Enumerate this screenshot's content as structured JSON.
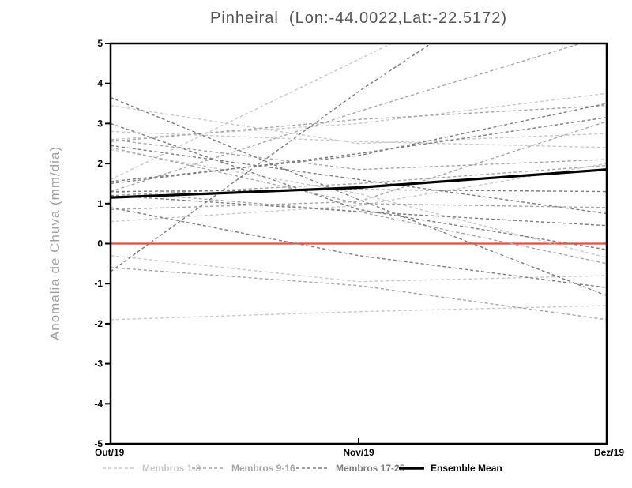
{
  "title": "Pinheiral  (Lon:-44.0022,Lat:-22.5172)",
  "chart_data": {
    "type": "line",
    "title": "Pinheiral  (Lon:-44.0022,Lat:-22.5172)",
    "xlabel": "",
    "ylabel": "Anomalia de Chuva (mm/dia)",
    "x_categories": [
      "Out/19",
      "Nov/19",
      "Dez/19"
    ],
    "ylim": [
      -5,
      5
    ],
    "yticks": [
      5,
      4,
      3,
      2,
      1,
      0,
      -1,
      -2,
      -3,
      -4,
      -5
    ],
    "grid": false,
    "legend_position": "bottom",
    "zero_line": {
      "value": 0,
      "color": "#f4483f"
    },
    "frame_color": "#000000",
    "groups": [
      {
        "name": "Membros 1-8",
        "color": "#c9c9c9",
        "style": "dashed",
        "series": [
          {
            "values": [
              3.45,
              2.5,
              2.75
            ]
          },
          {
            "values": [
              2.8,
              2.55,
              2.4
            ]
          },
          {
            "values": [
              2.6,
              3.0,
              3.75
            ]
          },
          {
            "values": [
              2.35,
              1.25,
              -0.35
            ]
          },
          {
            "values": [
              1.6,
              4.6,
              7.6
            ]
          },
          {
            "values": [
              0.55,
              0.95,
              2.0
            ]
          },
          {
            "values": [
              -0.3,
              -0.95,
              -0.8
            ]
          },
          {
            "values": [
              -1.9,
              -1.7,
              -1.55
            ]
          }
        ]
      },
      {
        "name": "Membros 9-16",
        "color": "#a6a6a6",
        "style": "dashed",
        "series": [
          {
            "values": [
              1.3,
              3.3,
              5.2
            ]
          },
          {
            "values": [
              2.55,
              3.1,
              3.45
            ]
          },
          {
            "values": [
              2.6,
              1.85,
              2.1
            ]
          },
          {
            "values": [
              1.3,
              0.8,
              -0.5
            ]
          },
          {
            "values": [
              0.85,
              1.05,
              3.05
            ]
          },
          {
            "values": [
              -0.6,
              -1.05,
              -1.9
            ]
          },
          {
            "values": [
              1.2,
              1.5,
              1.95
            ]
          },
          {
            "values": [
              2.4,
              1.0,
              0.9
            ]
          }
        ]
      },
      {
        "name": "Membros 17-25",
        "color": "#7d7d7d",
        "style": "dashed",
        "series": [
          {
            "values": [
              3.65,
              1.1,
              -1.3
            ]
          },
          {
            "values": [
              3.0,
              0.85,
              -0.15
            ]
          },
          {
            "values": [
              1.55,
              2.2,
              3.5
            ]
          },
          {
            "values": [
              1.5,
              2.25,
              3.15
            ]
          },
          {
            "values": [
              1.3,
              1.35,
              1.3
            ]
          },
          {
            "values": [
              -0.7,
              3.8,
              7.9
            ]
          },
          {
            "values": [
              0.9,
              -0.3,
              -1.1
            ]
          },
          {
            "values": [
              1.2,
              0.8,
              0.45
            ]
          },
          {
            "values": [
              2.45,
              1.6,
              0.75
            ]
          }
        ]
      }
    ],
    "mean": {
      "name": "Ensemble Mean",
      "color": "#000000",
      "style": "solid",
      "values": [
        1.15,
        1.4,
        1.85
      ]
    }
  }
}
